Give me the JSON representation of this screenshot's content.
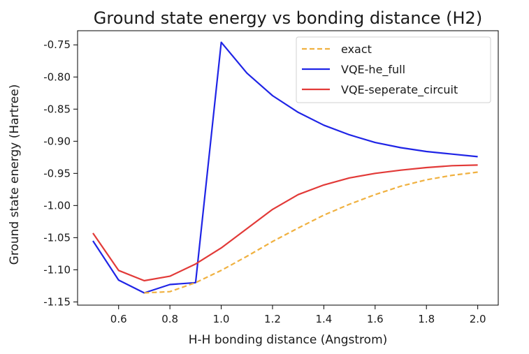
{
  "chart_data": {
    "type": "line",
    "title": "Ground state energy vs bonding distance (H2)",
    "xlabel": "H-H bonding distance (Angstrom)",
    "ylabel": "Ground state energy (Hartree)",
    "xlim": [
      0.44,
      2.08
    ],
    "ylim": [
      -1.155,
      -0.728
    ],
    "x_ticks": [
      0.6,
      0.8,
      1.0,
      1.2,
      1.4,
      1.6,
      1.8,
      2.0
    ],
    "x_tick_labels": [
      "0.6",
      "0.8",
      "1.0",
      "1.2",
      "1.4",
      "1.6",
      "1.8",
      "2.0"
    ],
    "y_ticks": [
      -0.75,
      -0.8,
      -0.85,
      -0.9,
      -0.95,
      -1.0,
      -1.05,
      -1.1,
      -1.15
    ],
    "y_tick_labels": [
      "-0.75",
      "-0.80",
      "-0.85",
      "-0.90",
      "-0.95",
      "-1.00",
      "-1.05",
      "-1.10",
      "-1.15"
    ],
    "grid": false,
    "legend_position": "top-right",
    "series": [
      {
        "name": "exact",
        "color": "#f0b140",
        "dash": true,
        "x": [
          0.7,
          0.8,
          0.9,
          1.0,
          1.1,
          1.2,
          1.3,
          1.4,
          1.5,
          1.6,
          1.7,
          1.8,
          1.9,
          2.0
        ],
        "y": [
          -1.136,
          -1.134,
          -1.12,
          -1.101,
          -1.079,
          -1.056,
          -1.035,
          -1.015,
          -0.998,
          -0.983,
          -0.97,
          -0.96,
          -0.953,
          -0.948
        ]
      },
      {
        "name": "VQE-he_full",
        "color": "#1f24e6",
        "dash": false,
        "x": [
          0.5,
          0.6,
          0.7,
          0.8,
          0.9,
          1.0,
          1.1,
          1.2,
          1.3,
          1.4,
          1.5,
          1.6,
          1.7,
          1.8,
          1.9,
          2.0
        ],
        "y": [
          -1.055,
          -1.116,
          -1.136,
          -1.123,
          -1.12,
          -0.746,
          -0.794,
          -0.829,
          -0.855,
          -0.875,
          -0.89,
          -0.902,
          -0.91,
          -0.916,
          -0.92,
          -0.924
        ]
      },
      {
        "name": "VQE-seperate_circuit",
        "color": "#e23a38",
        "dash": false,
        "x": [
          0.5,
          0.6,
          0.7,
          0.8,
          0.9,
          1.0,
          1.1,
          1.2,
          1.3,
          1.4,
          1.5,
          1.6,
          1.7,
          1.8,
          1.9,
          2.0
        ],
        "y": [
          -1.043,
          -1.101,
          -1.117,
          -1.11,
          -1.091,
          -1.066,
          -1.036,
          -1.006,
          -0.983,
          -0.968,
          -0.957,
          -0.95,
          -0.945,
          -0.941,
          -0.938,
          -0.937
        ]
      }
    ]
  }
}
